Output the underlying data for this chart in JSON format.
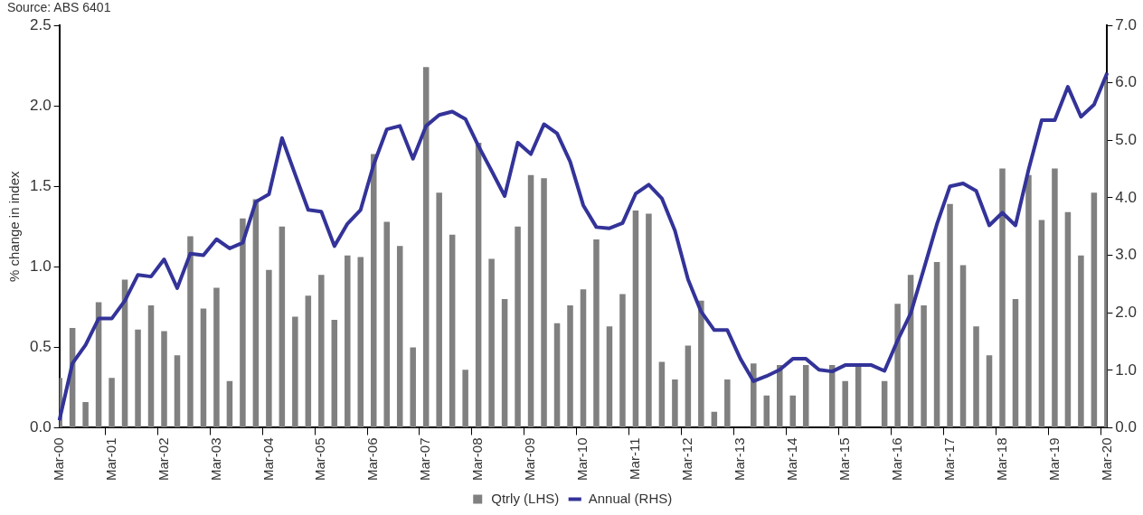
{
  "chart_data": {
    "type": "bar",
    "ylabel": "% change in index",
    "annotations": [
      "Source: ABS 6401"
    ],
    "categories": [
      "Mar-00",
      null,
      null,
      null,
      "Mar-01",
      null,
      null,
      null,
      "Mar-02",
      null,
      null,
      null,
      "Mar-03",
      null,
      null,
      null,
      "Mar-04",
      null,
      null,
      null,
      "Mar-05",
      null,
      null,
      null,
      "Mar-06",
      null,
      null,
      null,
      "Mar-07",
      null,
      null,
      null,
      "Mar-08",
      null,
      null,
      null,
      "Mar-09",
      null,
      null,
      null,
      "Mar-10",
      null,
      null,
      null,
      "Mar-11",
      null,
      null,
      null,
      "Mar-12",
      null,
      null,
      null,
      "Mar-13",
      null,
      null,
      null,
      "Mar-14",
      null,
      null,
      null,
      "Mar-15",
      null,
      null,
      null,
      "Mar-16",
      null,
      null,
      null,
      "Mar-17",
      null,
      null,
      null,
      "Mar-18",
      null,
      null,
      null,
      "Mar-19",
      null,
      null,
      null,
      "Mar-20"
    ],
    "series": [
      {
        "name": "Qtrly (LHS)",
        "color": "#808080",
        "values": [
          0.31,
          0.62,
          0.16,
          0.78,
          0.31,
          0.92,
          0.61,
          0.76,
          0.6,
          0.45,
          1.19,
          0.74,
          0.87,
          0.29,
          1.3,
          1.42,
          0.98,
          1.25,
          0.69,
          0.82,
          0.95,
          0.67,
          1.07,
          1.06,
          1.7,
          1.28,
          1.13,
          0.5,
          2.24,
          1.46,
          1.2,
          0.36,
          1.77,
          1.05,
          0.8,
          1.25,
          1.57,
          1.55,
          0.65,
          0.76,
          0.86,
          1.17,
          0.63,
          0.83,
          1.35,
          1.33,
          0.41,
          0.3,
          0.51,
          0.79,
          0.1,
          0.3,
          0,
          0.4,
          0.2,
          0.39,
          0.2,
          0.39,
          0,
          0.39,
          0.29,
          0.39,
          0,
          0.29,
          0.77,
          0.95,
          0.76,
          1.03,
          1.39,
          1.01,
          0.63,
          0.45,
          1.61,
          0.8,
          1.57,
          1.29,
          1.61,
          1.34,
          1.07,
          1.46,
          2.17
        ]
      },
      {
        "name": "Annual (RHS)",
        "type": "line",
        "axis": "y2",
        "color": "#333399",
        "values": [
          0.13,
          1.12,
          1.44,
          1.9,
          1.9,
          2.21,
          2.66,
          2.63,
          2.93,
          2.43,
          3.03,
          3.0,
          3.28,
          3.12,
          3.22,
          3.93,
          4.06,
          5.04,
          4.41,
          3.79,
          3.76,
          3.16,
          3.55,
          3.79,
          4.58,
          5.19,
          5.25,
          4.68,
          5.25,
          5.44,
          5.5,
          5.37,
          4.9,
          4.47,
          4.03,
          4.96,
          4.76,
          5.28,
          5.12,
          4.63,
          3.87,
          3.49,
          3.47,
          3.56,
          4.07,
          4.23,
          3.99,
          3.43,
          2.58,
          2.02,
          1.7,
          1.7,
          1.2,
          0.81,
          0.9,
          1.01,
          1.2,
          1.2,
          1.01,
          0.98,
          1.09,
          1.09,
          1.09,
          0.99,
          1.52,
          1.99,
          2.76,
          3.54,
          4.2,
          4.25,
          4.12,
          3.52,
          3.74,
          3.52,
          4.49,
          5.35,
          5.35,
          5.93,
          5.41,
          5.62,
          6.17
        ]
      }
    ],
    "ylim": [
      0,
      2.5
    ],
    "yticks": [
      {
        "value": 0,
        "label": "0.0"
      },
      {
        "value": 0.5,
        "label": "0.5"
      },
      {
        "value": 1,
        "label": "1.0"
      },
      {
        "value": 1.5,
        "label": "1.5"
      },
      {
        "value": 2,
        "label": "2.0"
      },
      {
        "value": 2.5,
        "label": "2.5"
      }
    ],
    "y2lim": [
      0,
      7
    ],
    "y2ticks": [
      {
        "value": 0,
        "label": "0.0"
      },
      {
        "value": 1,
        "label": "1.0"
      },
      {
        "value": 2,
        "label": "2.0"
      },
      {
        "value": 3,
        "label": "3.0"
      },
      {
        "value": 4,
        "label": "4.0"
      },
      {
        "value": 5,
        "label": "5.0"
      },
      {
        "value": 6,
        "label": "6.0"
      },
      {
        "value": 7,
        "label": "7.0"
      }
    ],
    "legend": "bottom",
    "marker": "none",
    "line_style": "solid"
  }
}
